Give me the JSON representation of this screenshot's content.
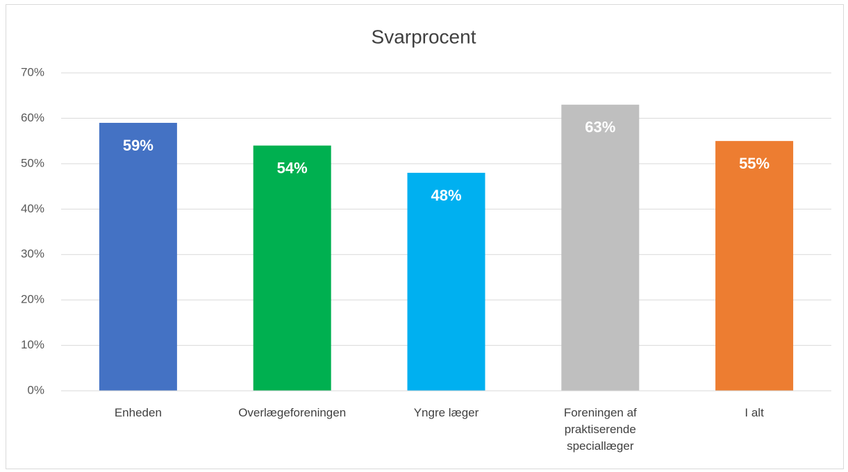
{
  "chart_data": {
    "type": "bar",
    "title": "Svarprocent",
    "categories": [
      "Enheden",
      "Overlægeforeningen",
      "Yngre læger",
      "Foreningen af praktiserende speciallæger",
      "I alt"
    ],
    "values": [
      59,
      54,
      48,
      63,
      55
    ],
    "value_labels": [
      "59%",
      "54%",
      "48%",
      "63%",
      "55%"
    ],
    "colors": [
      "#4472c4",
      "#00b050",
      "#00b0f0",
      "#bfbfbf",
      "#ed7d31"
    ],
    "ylim": [
      0,
      70
    ],
    "yticks": [
      {
        "value": 0,
        "label": "0%"
      },
      {
        "value": 10,
        "label": "10%"
      },
      {
        "value": 20,
        "label": "20%"
      },
      {
        "value": 30,
        "label": "30%"
      },
      {
        "value": 40,
        "label": "40%"
      },
      {
        "value": 50,
        "label": "50%"
      },
      {
        "value": 60,
        "label": "60%"
      },
      {
        "value": 70,
        "label": "70%"
      }
    ],
    "grid": true
  }
}
